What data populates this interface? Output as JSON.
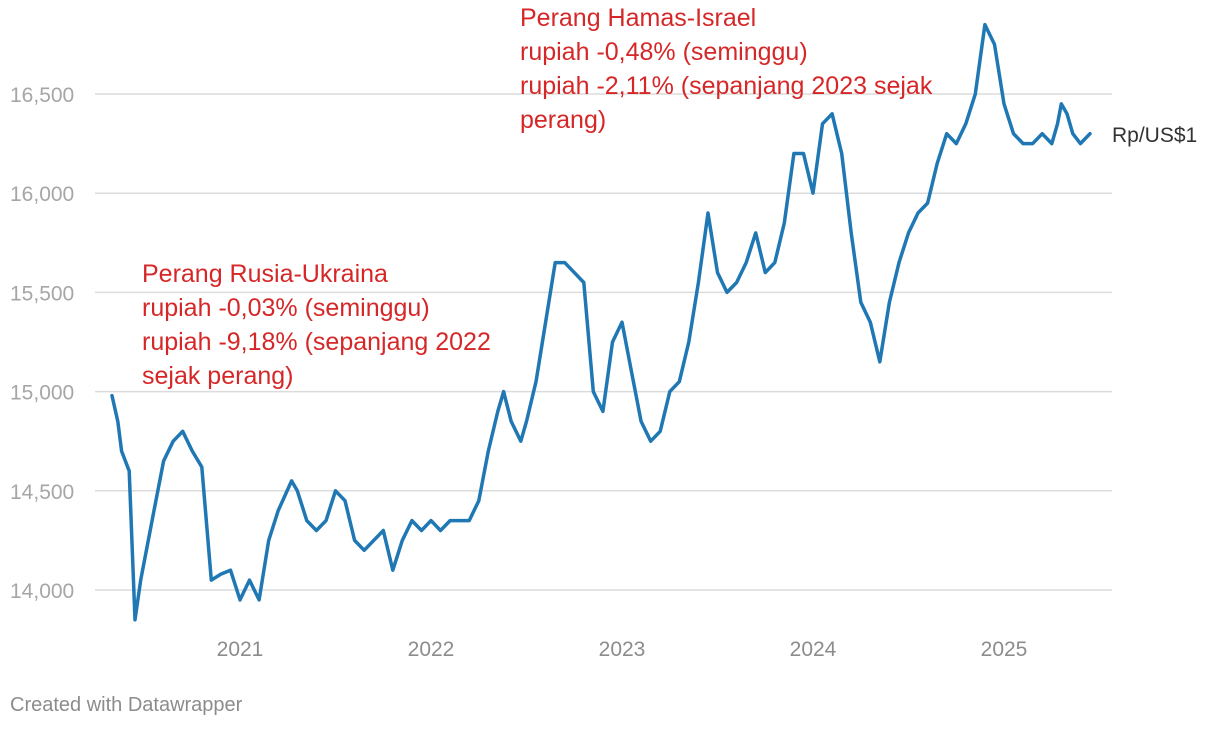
{
  "chart_data": {
    "type": "line",
    "title": "",
    "xlabel": "",
    "ylabel": "",
    "ylim": [
      13800,
      16900
    ],
    "xlim": [
      2020.35,
      2025.5
    ],
    "y_ticks": [
      14000,
      14500,
      15000,
      15500,
      16000,
      16500
    ],
    "y_tick_labels": [
      "14,000",
      "14,500",
      "15,000",
      "15,500",
      "16,000",
      "16,500"
    ],
    "x_ticks": [
      2021,
      2022,
      2023,
      2024,
      2025
    ],
    "x_tick_labels": [
      "2021",
      "2022",
      "2023",
      "2024",
      "2025"
    ],
    "grid": true,
    "colors": {
      "line": "#1f77b4",
      "annotation": "#d62728"
    },
    "series": [
      {
        "name": "Rp/US$1",
        "x": [
          2020.33,
          2020.36,
          2020.38,
          2020.42,
          2020.45,
          2020.48,
          2020.5,
          2020.55,
          2020.6,
          2020.65,
          2020.7,
          2020.75,
          2020.8,
          2020.85,
          2020.9,
          2020.95,
          2021.0,
          2021.05,
          2021.1,
          2021.15,
          2021.2,
          2021.27,
          2021.3,
          2021.35,
          2021.4,
          2021.45,
          2021.5,
          2021.55,
          2021.6,
          2021.65,
          2021.7,
          2021.75,
          2021.8,
          2021.85,
          2021.9,
          2021.95,
          2022.0,
          2022.05,
          2022.1,
          2022.15,
          2022.2,
          2022.25,
          2022.3,
          2022.35,
          2022.38,
          2022.42,
          2022.47,
          2022.5,
          2022.55,
          2022.6,
          2022.65,
          2022.7,
          2022.75,
          2022.8,
          2022.85,
          2022.9,
          2022.95,
          2023.0,
          2023.05,
          2023.1,
          2023.15,
          2023.2,
          2023.25,
          2023.3,
          2023.35,
          2023.4,
          2023.45,
          2023.5,
          2023.55,
          2023.6,
          2023.65,
          2023.7,
          2023.75,
          2023.8,
          2023.85,
          2023.9,
          2023.95,
          2024.0,
          2024.05,
          2024.1,
          2024.15,
          2024.2,
          2024.25,
          2024.3,
          2024.35,
          2024.4,
          2024.45,
          2024.5,
          2024.55,
          2024.6,
          2024.65,
          2024.7,
          2024.75,
          2024.8,
          2024.85,
          2024.9,
          2024.95,
          2025.0,
          2025.05,
          2025.1,
          2025.15,
          2025.2,
          2025.25,
          2025.28,
          2025.3,
          2025.33,
          2025.36,
          2025.4,
          2025.45
        ],
        "values": [
          14980,
          14850,
          14700,
          14600,
          13850,
          14050,
          14150,
          14400,
          14650,
          14750,
          14800,
          14700,
          14620,
          14050,
          14080,
          14100,
          13950,
          14050,
          13950,
          14250,
          14400,
          14550,
          14500,
          14350,
          14300,
          14350,
          14500,
          14450,
          14250,
          14200,
          14250,
          14300,
          14100,
          14250,
          14350,
          14300,
          14350,
          14300,
          14350,
          14350,
          14350,
          14450,
          14700,
          14900,
          15000,
          14850,
          14750,
          14850,
          15050,
          15350,
          15650,
          15650,
          15600,
          15550,
          15000,
          14900,
          15250,
          15350,
          15100,
          14850,
          14750,
          14800,
          15000,
          15050,
          15250,
          15550,
          15900,
          15600,
          15500,
          15550,
          15650,
          15800,
          15600,
          15650,
          15850,
          16200,
          16200,
          16000,
          16350,
          16400,
          16200,
          15800,
          15450,
          15350,
          15150,
          15450,
          15650,
          15800,
          15900,
          15950,
          16150,
          16300,
          16250,
          16350,
          16500,
          16850,
          16750,
          16450,
          16300,
          16250,
          16250,
          16300,
          16250,
          16350,
          16450,
          16400,
          16300,
          16250,
          16300
        ]
      }
    ],
    "series_label": "Rp/US$1",
    "annotations": [
      {
        "lines": [
          "Perang Rusia-Ukraina",
          "rupiah -0,03% (seminggu)",
          "rupiah -9,18% (sepanjang 2022",
          "sejak perang)"
        ]
      },
      {
        "lines": [
          "Perang Hamas-Israel",
          "rupiah -0,48% (seminggu)",
          "rupiah -2,11% (sepanjang 2023 sejak",
          "perang)"
        ]
      }
    ]
  },
  "footer": {
    "credit": "Created with Datawrapper"
  }
}
